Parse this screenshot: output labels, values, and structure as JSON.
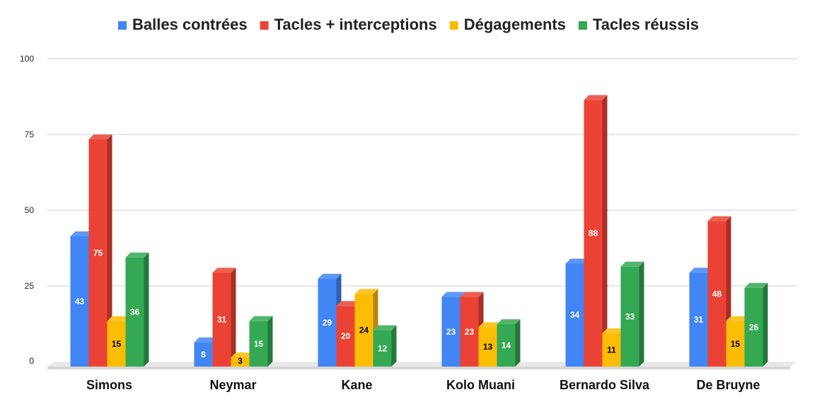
{
  "chart_data": {
    "type": "bar",
    "three_d": true,
    "categories": [
      "Simons",
      "Neymar",
      "Kane",
      "Kolo Muani",
      "Bernardo Silva",
      "De Bruyne"
    ],
    "series": [
      {
        "name": "Balles contrées",
        "color": "#4285f4",
        "label_color": "#ffffff",
        "values": [
          43,
          8,
          29,
          23,
          34,
          31
        ]
      },
      {
        "name": "Tacles + interceptions",
        "color": "#ea4335",
        "label_color": "#ffffff",
        "values": [
          75,
          31,
          20,
          23,
          88,
          48
        ]
      },
      {
        "name": "Dégagements",
        "color": "#fbbc04",
        "label_color": "#000000",
        "values": [
          15,
          3,
          24,
          13,
          11,
          15
        ]
      },
      {
        "name": "Tacles réussis",
        "color": "#34a853",
        "label_color": "#ffffff",
        "values": [
          36,
          15,
          12,
          14,
          33,
          26
        ]
      }
    ],
    "yticks": [
      "0",
      "25",
      "50",
      "75",
      "100"
    ],
    "ylim": [
      0,
      100
    ],
    "legend_position": "top",
    "grid": true,
    "data_labels": true
  }
}
